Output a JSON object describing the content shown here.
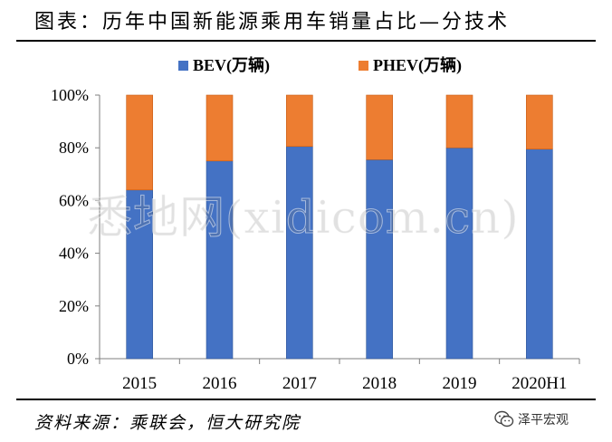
{
  "title": "图表：历年中国新能源乘用车销量占比—分技术",
  "source": "资料来源：乘联会，恒大研究院",
  "watermark": "悉地网(xidicom.cn)",
  "badge": {
    "label": "泽平宏观",
    "icon": "wechat-icon"
  },
  "colors": {
    "bev": "#4472C4",
    "phev": "#ED7D31",
    "bev_edge": "#2F5597"
  },
  "chart_data": {
    "type": "bar",
    "stacked": true,
    "categories": [
      "2015",
      "2016",
      "2017",
      "2018",
      "2019",
      "2020H1"
    ],
    "series": [
      {
        "name": "BEV(万辆)",
        "values": [
          64,
          75,
          80.5,
          75.5,
          80,
          79.5
        ]
      },
      {
        "name": "PHEV(万辆)",
        "values": [
          36,
          25,
          19.5,
          24.5,
          20,
          20.5
        ]
      }
    ],
    "ylim": [
      0,
      100
    ],
    "yticks": [
      "0%",
      "20%",
      "40%",
      "60%",
      "80%",
      "100%"
    ],
    "ytick_values": [
      0,
      20,
      40,
      60,
      80,
      100
    ],
    "legend_position": "top",
    "grid": false
  }
}
